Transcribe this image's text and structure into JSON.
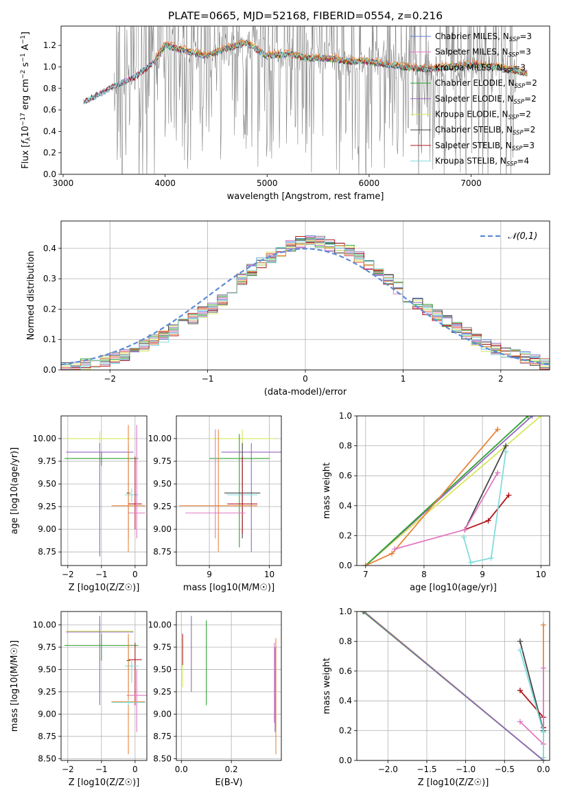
{
  "title": "PLATE=0665, MJD=52168, FIBERID=0554, z=0.216",
  "colors": {
    "Chabrier MILES": "#5b7bd5",
    "Salpeter MILES": "#e377c2",
    "Kroupa MILES": "#7f7f7f",
    "Chabrier ELODIE": "#2ca02c",
    "Salpeter ELODIE": "#9467bd",
    "Kroupa ELODIE": "#d4e85a",
    "Chabrier STELIB": "#444444",
    "Salpeter STELIB": "#b0181c",
    "Kroupa STELIB": "#80dcdc",
    "orange": "#e8843a",
    "normal": "#5b8ad5",
    "grid": "#b0b0b0"
  },
  "chart_data": [
    {
      "panel": "spectrum",
      "type": "line",
      "xlabel": "wavelength [Angstrom, rest frame]",
      "ylabel": "Flux [f_λ 10^-17 erg cm^-2 s^-1 A^-1]",
      "xlim": [
        2980,
        7770
      ],
      "ylim": [
        0,
        1.38
      ],
      "xticks": [
        "3000",
        "4000",
        "5000",
        "6000",
        "7000"
      ],
      "yticks": [
        "0.0",
        "0.2",
        "0.4",
        "0.6",
        "0.8",
        "1.0",
        "1.2"
      ],
      "legend_position": "top-right",
      "legend": [
        {
          "label": "Chabrier MILES, N_SSP=3",
          "base": "Chabrier MILES, N",
          "sub": "SSP",
          "tail": "=3"
        },
        {
          "label": "Salpeter MILES, N_SSP=3",
          "base": "Salpeter MILES, N",
          "sub": "SSP",
          "tail": "=3"
        },
        {
          "label": "Kroupa MILES, N_SSP=3",
          "base": "Kroupa MILES, N",
          "sub": "SSP",
          "tail": "=3"
        },
        {
          "label": "Chabrier ELODIE, N_SSP=2",
          "base": "Chabrier ELODIE, N",
          "sub": "SSP",
          "tail": "=2"
        },
        {
          "label": "Salpeter ELODIE, N_SSP=2",
          "base": "Salpeter ELODIE, N",
          "sub": "SSP",
          "tail": "=2"
        },
        {
          "label": "Kroupa ELODIE, N_SSP=2",
          "base": "Kroupa ELODIE, N",
          "sub": "SSP",
          "tail": "=2"
        },
        {
          "label": "Chabrier STELIB, N_SSP=2",
          "base": "Chabrier STELIB, N",
          "sub": "SSP",
          "tail": "=2"
        },
        {
          "label": "Salpeter STELIB, N_SSP=3",
          "base": "Salpeter STELIB, N",
          "sub": "SSP",
          "tail": "=3"
        },
        {
          "label": "Kroupa STELIB, N_SSP=4",
          "base": "Kroupa STELIB, N",
          "sub": "SSP",
          "tail": "=4"
        }
      ],
      "continuum": {
        "x": [
          3200,
          3300,
          3500,
          3700,
          3900,
          4000,
          4200,
          4400,
          4600,
          4800,
          5000,
          5200,
          5400,
          5600,
          5800,
          6000,
          6200,
          6400,
          6600,
          6800,
          7000,
          7200,
          7400,
          7550
        ],
        "y": [
          0.68,
          0.72,
          0.82,
          0.9,
          1.05,
          1.2,
          1.15,
          1.1,
          1.17,
          1.22,
          1.1,
          1.12,
          1.08,
          1.08,
          1.05,
          1.05,
          1.02,
          0.99,
          0.98,
          1.0,
          1.02,
          1.0,
          0.97,
          0.94
        ]
      },
      "noise_range": [
        3500,
        7450
      ]
    },
    {
      "panel": "residuals",
      "type": "area",
      "xlabel": "(data-model)/error",
      "ylabel": "Normed distribution",
      "xlim": [
        -2.5,
        2.5
      ],
      "ylim": [
        0,
        0.49
      ],
      "xticks": [
        "−2",
        "−1",
        "0",
        "1",
        "2"
      ],
      "yticks": [
        "0.0",
        "0.1",
        "0.2",
        "0.3",
        "0.4"
      ],
      "legend": "𝒩(0,1)",
      "legend_position": "top-right",
      "hist": {
        "bin_start": -2.5,
        "bin_width": 0.1,
        "values": [
          0.01,
          0.01,
          0.02,
          0.02,
          0.03,
          0.04,
          0.05,
          0.06,
          0.08,
          0.1,
          0.11,
          0.13,
          0.15,
          0.17,
          0.19,
          0.2,
          0.23,
          0.27,
          0.3,
          0.33,
          0.35,
          0.37,
          0.39,
          0.41,
          0.42,
          0.43,
          0.42,
          0.41,
          0.4,
          0.39,
          0.37,
          0.35,
          0.33,
          0.3,
          0.27,
          0.24,
          0.22,
          0.2,
          0.18,
          0.16,
          0.14,
          0.12,
          0.1,
          0.08,
          0.07,
          0.06,
          0.05,
          0.04,
          0.03,
          0.02
        ]
      }
    },
    {
      "panel": "age_vs_Z",
      "type": "scatter",
      "xlabel": "Z [log10(Z/Z☉)]",
      "ylabel": "age  [log10(age/yr)]",
      "xlim": [
        -2.2,
        0.35
      ],
      "ylim": [
        8.6,
        10.25
      ],
      "xticks": [
        "−2",
        "−1",
        "0"
      ],
      "yticks": [
        "8.75",
        "9.00",
        "9.25",
        "9.50",
        "9.75",
        "10.00"
      ],
      "errorbars": [
        {
          "model": "Kroupa ELODIE",
          "x": -1.05,
          "xerr": 1.0,
          "y": 10.0,
          "ylo": 9.92,
          "yhi": 10.08
        },
        {
          "model": "Salpeter ELODIE",
          "x": -1.05,
          "xerr": 1.0,
          "y": 9.85,
          "ylo": 8.7,
          "yhi": 9.95
        },
        {
          "model": "Chabrier ELODIE",
          "x": -1.0,
          "xerr": 1.1,
          "y": 9.78,
          "ylo": 9.7,
          "yhi": 9.85
        },
        {
          "model": "Chabrier STELIB",
          "x": -0.2,
          "xerr": 0.05,
          "y": 9.4,
          "ylo": 8.9,
          "yhi": 9.95
        },
        {
          "model": "Kroupa STELIB",
          "x": -0.1,
          "xerr": 0.2,
          "y": 9.38,
          "ylo": 9.3,
          "yhi": 9.45
        },
        {
          "model": "Salpeter STELIB",
          "x": 0.0,
          "xerr": 0.2,
          "y": 9.28,
          "ylo": 9.0,
          "yhi": 9.8
        },
        {
          "model": "orange",
          "x": -0.2,
          "xerr": 0.5,
          "y": 9.26,
          "ylo": 8.75,
          "yhi": 10.15
        },
        {
          "model": "Salpeter MILES",
          "x": 0.05,
          "xerr": 0.25,
          "y": 9.18,
          "ylo": 8.9,
          "yhi": 10.15
        }
      ]
    },
    {
      "panel": "age_vs_mass",
      "type": "scatter",
      "xlabel": "mass [log10(M/M☉)]",
      "xlim": [
        8.45,
        10.2
      ],
      "ylim": [
        8.6,
        10.25
      ],
      "xticks": [
        "9",
        "10"
      ],
      "yticks": [
        "8.75",
        "9.00",
        "9.25",
        "9.50",
        "9.75",
        "10.00"
      ],
      "errorbars": [
        {
          "model": "Kroupa ELODIE",
          "x": 9.55,
          "xerr": 0.55,
          "y": 10.0,
          "ylo": 9.9,
          "yhi": 10.1
        },
        {
          "model": "Salpeter ELODIE",
          "x": 9.7,
          "xerr": 0.5,
          "y": 9.85,
          "ylo": 8.75,
          "yhi": 9.95
        },
        {
          "model": "Chabrier ELODIE",
          "x": 9.5,
          "xerr": 0.5,
          "y": 9.78,
          "ylo": 8.8,
          "yhi": 10.05
        },
        {
          "model": "Chabrier STELIB",
          "x": 9.55,
          "xerr": 0.3,
          "y": 9.4,
          "ylo": 8.9,
          "yhi": 9.95
        },
        {
          "model": "Kroupa STELIB",
          "x": 9.55,
          "xerr": 0.25,
          "y": 9.38,
          "ylo": 9.1,
          "yhi": 9.45
        },
        {
          "model": "Salpeter STELIB",
          "x": 9.55,
          "xerr": 0.25,
          "y": 9.28,
          "ylo": 8.95,
          "yhi": 9.8
        },
        {
          "model": "orange",
          "x": 9.15,
          "xerr": 0.65,
          "y": 9.26,
          "ylo": 8.75,
          "yhi": 10.1
        },
        {
          "model": "Salpeter MILES",
          "x": 9.1,
          "xerr": 0.5,
          "y": 9.18,
          "ylo": 8.9,
          "yhi": 10.1
        }
      ]
    },
    {
      "panel": "mass_weight_vs_age",
      "type": "line",
      "xlabel": "age  [log10(age/yr)]",
      "ylabel": "mass weight",
      "xlim": [
        6.85,
        10.15
      ],
      "ylim": [
        0,
        1.0
      ],
      "xticks": [
        "7",
        "8",
        "9",
        "10"
      ],
      "yticks": [
        "0.0",
        "0.2",
        "0.4",
        "0.6",
        "0.8",
        "1.0"
      ],
      "series": [
        {
          "model": "Kroupa ELODIE",
          "points": [
            [
              7.0,
              0.0
            ],
            [
              10.0,
              1.0
            ]
          ]
        },
        {
          "model": "Salpeter ELODIE",
          "points": [
            [
              7.0,
              0.0
            ],
            [
              9.85,
              1.0
            ]
          ]
        },
        {
          "model": "Chabrier ELODIE",
          "points": [
            [
              7.0,
              0.0
            ],
            [
              9.78,
              1.0
            ]
          ]
        },
        {
          "model": "orange",
          "points": [
            [
              7.0,
              0.0
            ],
            [
              7.45,
              0.08
            ],
            [
              9.26,
              0.91
            ]
          ]
        },
        {
          "model": "Chabrier STELIB",
          "points": [
            [
              8.7,
              0.24
            ],
            [
              9.4,
              0.8
            ]
          ]
        },
        {
          "model": "Salpeter STELIB",
          "points": [
            [
              8.7,
              0.24
            ],
            [
              9.1,
              0.3
            ],
            [
              9.45,
              0.47
            ]
          ]
        },
        {
          "model": "Salpeter MILES",
          "points": [
            [
              7.5,
              0.11
            ],
            [
              8.7,
              0.24
            ],
            [
              9.26,
              0.62
            ]
          ]
        },
        {
          "model": "Kroupa STELIB",
          "points": [
            [
              8.68,
              0.19
            ],
            [
              8.8,
              0.02
            ],
            [
              9.15,
              0.05
            ],
            [
              9.4,
              0.76
            ]
          ]
        }
      ]
    },
    {
      "panel": "mass_vs_Z",
      "type": "scatter",
      "xlabel": "Z [log10(Z/Z☉)]",
      "ylabel": "mass [log10(M/M☉)]",
      "xlim": [
        -2.2,
        0.35
      ],
      "ylim": [
        8.48,
        10.15
      ],
      "xticks": [
        "−2",
        "−1",
        "0"
      ],
      "yticks": [
        "8.50",
        "8.75",
        "9.00",
        "9.25",
        "9.50",
        "9.75",
        "10.00"
      ],
      "errorbars": [
        {
          "model": "Kroupa ELODIE",
          "x": -1.05,
          "xerr": 1.0,
          "y": 9.93,
          "ylo": 9.6,
          "yhi": 10.05
        },
        {
          "model": "Salpeter ELODIE",
          "x": -1.05,
          "xerr": 1.0,
          "y": 9.92,
          "ylo": 9.1,
          "yhi": 10.1
        },
        {
          "model": "Chabrier ELODIE",
          "x": -1.0,
          "xerr": 1.1,
          "y": 9.77,
          "ylo": 9.6,
          "yhi": 9.9
        },
        {
          "model": "Chabrier STELIB",
          "x": -0.2,
          "xerr": 0.05,
          "y": 9.6,
          "ylo": 9.25,
          "yhi": 9.85
        },
        {
          "model": "Salpeter STELIB",
          "x": 0.0,
          "xerr": 0.2,
          "y": 9.61,
          "ylo": 9.1,
          "yhi": 9.8
        },
        {
          "model": "Kroupa STELIB",
          "x": -0.1,
          "xerr": 0.2,
          "y": 9.54,
          "ylo": 9.35,
          "yhi": 9.6
        },
        {
          "model": "Salpeter MILES",
          "x": 0.05,
          "xerr": 0.3,
          "y": 9.21,
          "ylo": 8.8,
          "yhi": 9.5
        },
        {
          "model": "orange",
          "x": -0.2,
          "xerr": 0.5,
          "y": 9.14,
          "ylo": 8.55,
          "yhi": 9.9
        },
        {
          "model": "Kroupa STELIB",
          "x": -0.2,
          "xerr": 0.5,
          "y": 9.13,
          "ylo": 9.1,
          "yhi": 9.16
        }
      ]
    },
    {
      "panel": "mass_vs_EBV",
      "type": "scatter",
      "xlabel": "E(B-V)",
      "xlim": [
        -0.02,
        0.4
      ],
      "ylim": [
        8.48,
        10.15
      ],
      "xticks": [
        "0.0",
        "0.2"
      ],
      "yticks": [
        "8.50",
        "8.75",
        "9.00",
        "9.25",
        "9.50",
        "9.75",
        "10.00"
      ],
      "errorbars": [
        {
          "model": "Kroupa ELODIE",
          "x": 0.005,
          "ylo": 9.3,
          "yhi": 9.85
        },
        {
          "model": "Salpeter STELIB",
          "x": 0.005,
          "ylo": 9.55,
          "yhi": 9.9
        },
        {
          "model": "Salpeter ELODIE",
          "x": 0.04,
          "ylo": 9.25,
          "yhi": 10.1
        },
        {
          "model": "Chabrier ELODIE",
          "x": 0.1,
          "ylo": 9.1,
          "yhi": 10.05
        },
        {
          "model": "Salpeter ELODIE",
          "x": 0.375,
          "ylo": 8.8,
          "yhi": 9.75
        },
        {
          "model": "orange",
          "x": 0.378,
          "ylo": 8.55,
          "yhi": 9.85
        },
        {
          "model": "Salpeter MILES",
          "x": 0.372,
          "ylo": 8.9,
          "yhi": 9.8
        }
      ]
    },
    {
      "panel": "mass_weight_vs_Z",
      "type": "line",
      "xlabel": "Z [log10(Z/Z☉)]",
      "ylabel": "mass weight",
      "xlim": [
        -2.4,
        0.08
      ],
      "ylim": [
        0,
        1.0
      ],
      "xticks": [
        "−2.0",
        "−1.5",
        "−1.0",
        "−0.5",
        "0.0"
      ],
      "yticks": [
        "0.0",
        "0.2",
        "0.4",
        "0.6",
        "0.8",
        "1.0"
      ],
      "series": [
        {
          "model": "Kroupa ELODIE",
          "points": [
            [
              -2.3,
              1.0
            ],
            [
              0.0,
              0.0
            ]
          ]
        },
        {
          "model": "Chabrier ELODIE",
          "points": [
            [
              -2.32,
              1.0
            ],
            [
              0.0,
              0.0
            ]
          ]
        },
        {
          "model": "Salpeter ELODIE",
          "points": [
            [
              -2.31,
              1.0
            ],
            [
              0.0,
              0.0
            ]
          ]
        },
        {
          "model": "orange",
          "points": [
            [
              0.0,
              0.91
            ],
            [
              0.0,
              0.0
            ]
          ]
        },
        {
          "model": "Chabrier STELIB",
          "points": [
            [
              -0.3,
              0.8
            ],
            [
              0.0,
              0.2
            ]
          ]
        },
        {
          "model": "Salpeter STELIB",
          "points": [
            [
              -0.3,
              0.47
            ],
            [
              0.0,
              0.29
            ],
            [
              0.0,
              0.22
            ]
          ]
        },
        {
          "model": "Salpeter MILES",
          "points": [
            [
              -0.3,
              0.26
            ],
            [
              0.0,
              0.11
            ],
            [
              0.0,
              0.62
            ]
          ]
        },
        {
          "model": "Kroupa STELIB",
          "points": [
            [
              -0.3,
              0.74
            ],
            [
              0.0,
              0.19
            ],
            [
              0.0,
              0.02
            ]
          ]
        }
      ]
    }
  ]
}
